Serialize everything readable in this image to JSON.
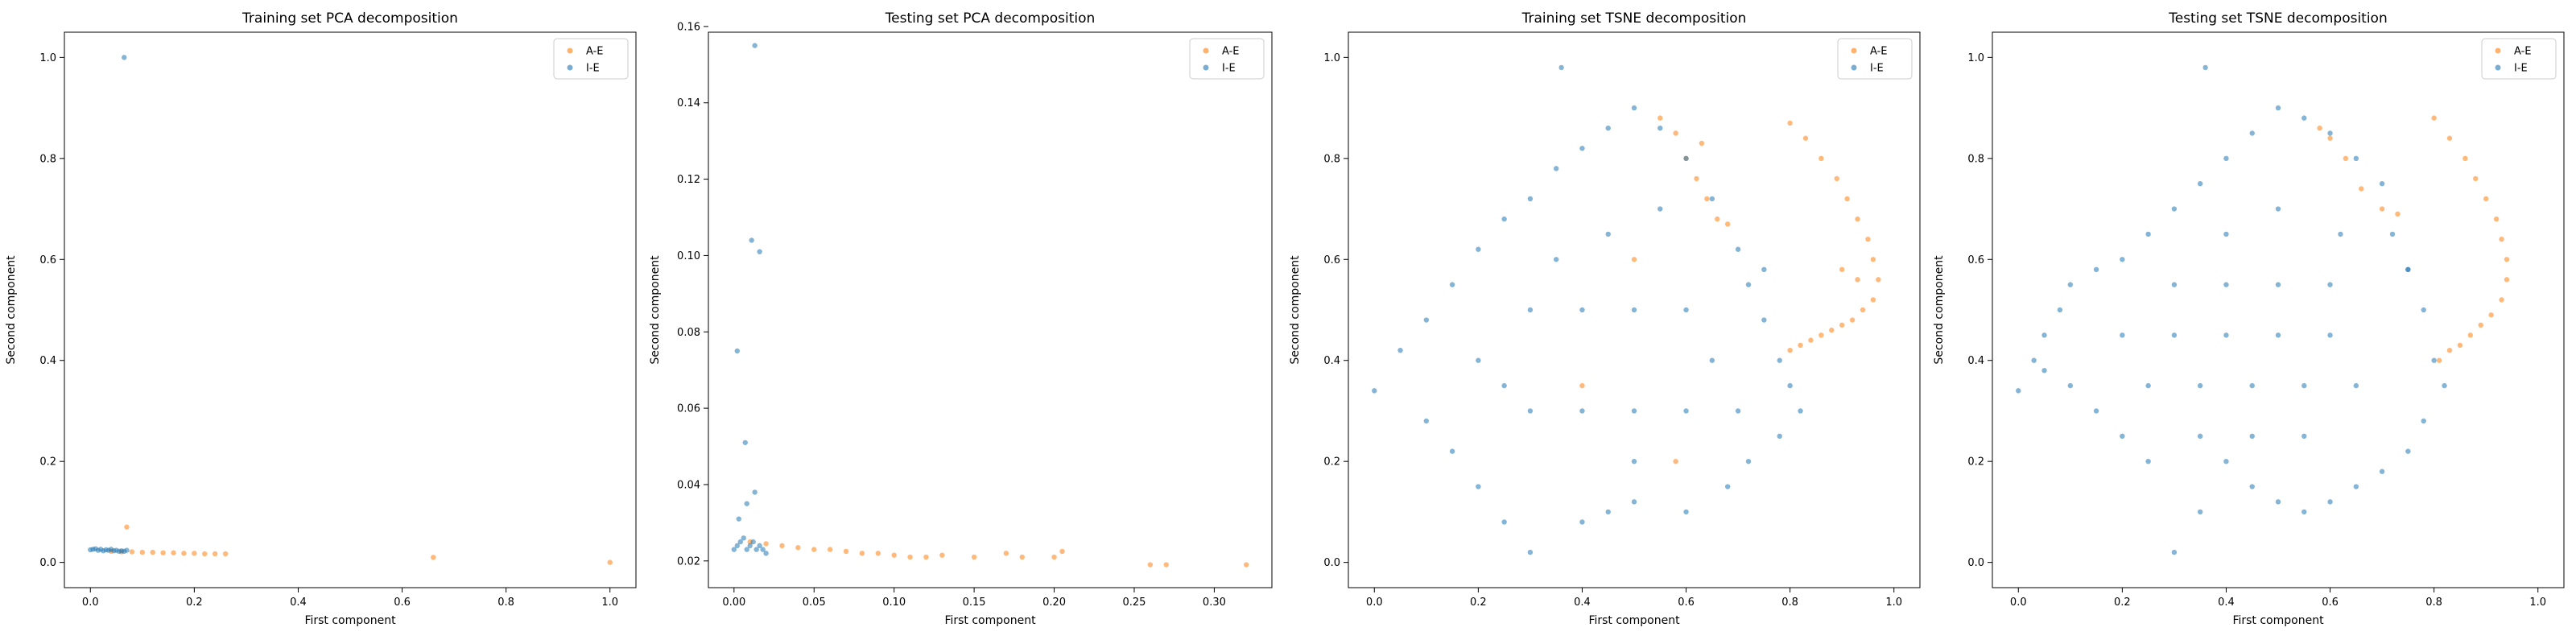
{
  "colors": {
    "A-E": "#ff7f0e",
    "I-E": "#1f77b4"
  },
  "chart_data": [
    {
      "type": "scatter",
      "title": "Training set PCA decomposition",
      "xlabel": "First component",
      "ylabel": "Second component",
      "xlim": [
        -0.05,
        1.05
      ],
      "ylim": [
        -0.05,
        1.05
      ],
      "xticks": [
        "0.0",
        "0.2",
        "0.4",
        "0.6",
        "0.8",
        "1.0"
      ],
      "yticks": [
        "0.0",
        "0.2",
        "0.4",
        "0.6",
        "0.8",
        "1.0"
      ],
      "legend": "top-right",
      "series": [
        {
          "name": "A-E",
          "points": [
            [
              0.04,
              0.022
            ],
            [
              0.06,
              0.021
            ],
            [
              0.08,
              0.021
            ],
            [
              0.1,
              0.02
            ],
            [
              0.12,
              0.02
            ],
            [
              0.14,
              0.019
            ],
            [
              0.16,
              0.019
            ],
            [
              0.18,
              0.018
            ],
            [
              0.2,
              0.018
            ],
            [
              0.22,
              0.017
            ],
            [
              0.24,
              0.017
            ],
            [
              0.26,
              0.017
            ],
            [
              0.07,
              0.07
            ],
            [
              0.66,
              0.01
            ],
            [
              1.0,
              0.0
            ]
          ]
        },
        {
          "name": "I-E",
          "points": [
            [
              0.0,
              0.025
            ],
            [
              0.005,
              0.026
            ],
            [
              0.01,
              0.027
            ],
            [
              0.015,
              0.024
            ],
            [
              0.02,
              0.026
            ],
            [
              0.025,
              0.023
            ],
            [
              0.03,
              0.025
            ],
            [
              0.035,
              0.024
            ],
            [
              0.04,
              0.026
            ],
            [
              0.045,
              0.023
            ],
            [
              0.05,
              0.024
            ],
            [
              0.055,
              0.022
            ],
            [
              0.06,
              0.023
            ],
            [
              0.065,
              0.022
            ],
            [
              0.07,
              0.024
            ],
            [
              0.065,
              1.0
            ]
          ]
        }
      ]
    },
    {
      "type": "scatter",
      "title": "Testing set PCA decomposition",
      "xlabel": "First component",
      "ylabel": "Second component",
      "xlim": [
        -0.016,
        0.336
      ],
      "ylim": [
        0.013,
        0.1585
      ],
      "xticks": [
        "0.00",
        "0.05",
        "0.10",
        "0.15",
        "0.20",
        "0.25",
        "0.30"
      ],
      "yticks": [
        "0.02",
        "0.04",
        "0.06",
        "0.08",
        "0.10",
        "0.12",
        "0.14",
        "0.16"
      ],
      "legend": "top-right",
      "series": [
        {
          "name": "A-E",
          "points": [
            [
              0.01,
              0.025
            ],
            [
              0.02,
              0.0245
            ],
            [
              0.03,
              0.024
            ],
            [
              0.04,
              0.0235
            ],
            [
              0.05,
              0.023
            ],
            [
              0.06,
              0.023
            ],
            [
              0.07,
              0.0225
            ],
            [
              0.08,
              0.022
            ],
            [
              0.09,
              0.022
            ],
            [
              0.1,
              0.0215
            ],
            [
              0.11,
              0.021
            ],
            [
              0.12,
              0.021
            ],
            [
              0.13,
              0.0215
            ],
            [
              0.15,
              0.021
            ],
            [
              0.17,
              0.022
            ],
            [
              0.18,
              0.021
            ],
            [
              0.2,
              0.021
            ],
            [
              0.205,
              0.0225
            ],
            [
              0.26,
              0.019
            ],
            [
              0.27,
              0.019
            ],
            [
              0.32,
              0.019
            ]
          ]
        },
        {
          "name": "I-E",
          "points": [
            [
              0.0,
              0.023
            ],
            [
              0.002,
              0.024
            ],
            [
              0.004,
              0.025
            ],
            [
              0.006,
              0.026
            ],
            [
              0.008,
              0.023
            ],
            [
              0.01,
              0.024
            ],
            [
              0.012,
              0.025
            ],
            [
              0.014,
              0.023
            ],
            [
              0.016,
              0.024
            ],
            [
              0.018,
              0.023
            ],
            [
              0.02,
              0.022
            ],
            [
              0.003,
              0.031
            ],
            [
              0.008,
              0.035
            ],
            [
              0.013,
              0.038
            ],
            [
              0.002,
              0.075
            ],
            [
              0.007,
              0.051
            ],
            [
              0.011,
              0.104
            ],
            [
              0.016,
              0.101
            ],
            [
              0.013,
              0.155
            ]
          ]
        }
      ]
    },
    {
      "type": "scatter",
      "title": "Training set TSNE decomposition",
      "xlabel": "First component",
      "ylabel": "Second component",
      "xlim": [
        -0.05,
        1.05
      ],
      "ylim": [
        -0.05,
        1.05
      ],
      "xticks": [
        "0.0",
        "0.2",
        "0.4",
        "0.6",
        "0.8",
        "1.0"
      ],
      "yticks": [
        "0.0",
        "0.2",
        "0.4",
        "0.6",
        "0.8",
        "1.0"
      ],
      "legend": "top-right",
      "series": [
        {
          "name": "A-E",
          "points": [
            [
              0.8,
              0.87
            ],
            [
              0.83,
              0.84
            ],
            [
              0.86,
              0.8
            ],
            [
              0.89,
              0.76
            ],
            [
              0.91,
              0.72
            ],
            [
              0.93,
              0.68
            ],
            [
              0.95,
              0.64
            ],
            [
              0.96,
              0.6
            ],
            [
              0.97,
              0.56
            ],
            [
              0.96,
              0.52
            ],
            [
              0.94,
              0.5
            ],
            [
              0.92,
              0.48
            ],
            [
              0.9,
              0.47
            ],
            [
              0.88,
              0.46
            ],
            [
              0.86,
              0.45
            ],
            [
              0.84,
              0.44
            ],
            [
              0.82,
              0.43
            ],
            [
              0.8,
              0.42
            ],
            [
              0.9,
              0.58
            ],
            [
              0.93,
              0.56
            ],
            [
              0.55,
              0.88
            ],
            [
              0.58,
              0.85
            ],
            [
              0.6,
              0.8
            ],
            [
              0.62,
              0.76
            ],
            [
              0.64,
              0.72
            ],
            [
              0.66,
              0.68
            ],
            [
              0.68,
              0.67
            ],
            [
              0.63,
              0.83
            ],
            [
              0.5,
              0.6
            ],
            [
              0.4,
              0.35
            ],
            [
              0.58,
              0.2
            ]
          ]
        },
        {
          "name": "I-E",
          "points": [
            [
              0.0,
              0.34
            ],
            [
              0.05,
              0.42
            ],
            [
              0.1,
              0.48
            ],
            [
              0.15,
              0.55
            ],
            [
              0.2,
              0.62
            ],
            [
              0.25,
              0.68
            ],
            [
              0.3,
              0.72
            ],
            [
              0.35,
              0.78
            ],
            [
              0.4,
              0.82
            ],
            [
              0.45,
              0.86
            ],
            [
              0.5,
              0.9
            ],
            [
              0.55,
              0.86
            ],
            [
              0.6,
              0.8
            ],
            [
              0.65,
              0.72
            ],
            [
              0.7,
              0.62
            ],
            [
              0.72,
              0.55
            ],
            [
              0.75,
              0.48
            ],
            [
              0.78,
              0.4
            ],
            [
              0.8,
              0.35
            ],
            [
              0.82,
              0.3
            ],
            [
              0.78,
              0.25
            ],
            [
              0.72,
              0.2
            ],
            [
              0.68,
              0.15
            ],
            [
              0.6,
              0.1
            ],
            [
              0.5,
              0.12
            ],
            [
              0.45,
              0.1
            ],
            [
              0.4,
              0.08
            ],
            [
              0.3,
              0.02
            ],
            [
              0.25,
              0.08
            ],
            [
              0.2,
              0.15
            ],
            [
              0.15,
              0.22
            ],
            [
              0.1,
              0.28
            ],
            [
              0.36,
              0.98
            ],
            [
              0.75,
              0.58
            ],
            [
              0.3,
              0.5
            ],
            [
              0.4,
              0.5
            ],
            [
              0.5,
              0.5
            ],
            [
              0.6,
              0.5
            ],
            [
              0.3,
              0.3
            ],
            [
              0.4,
              0.3
            ],
            [
              0.5,
              0.3
            ],
            [
              0.6,
              0.3
            ],
            [
              0.2,
              0.4
            ],
            [
              0.35,
              0.6
            ],
            [
              0.45,
              0.65
            ],
            [
              0.55,
              0.7
            ],
            [
              0.25,
              0.35
            ],
            [
              0.5,
              0.2
            ],
            [
              0.65,
              0.4
            ],
            [
              0.7,
              0.3
            ]
          ]
        }
      ]
    },
    {
      "type": "scatter",
      "title": "Testing set TSNE decomposition",
      "xlabel": "First component",
      "ylabel": "Second component",
      "xlim": [
        -0.05,
        1.05
      ],
      "ylim": [
        -0.05,
        1.05
      ],
      "xticks": [
        "0.0",
        "0.2",
        "0.4",
        "0.6",
        "0.8",
        "1.0"
      ],
      "yticks": [
        "0.0",
        "0.2",
        "0.4",
        "0.6",
        "0.8",
        "1.0"
      ],
      "legend": "top-right",
      "series": [
        {
          "name": "A-E",
          "points": [
            [
              0.8,
              0.88
            ],
            [
              0.83,
              0.84
            ],
            [
              0.86,
              0.8
            ],
            [
              0.88,
              0.76
            ],
            [
              0.9,
              0.72
            ],
            [
              0.92,
              0.68
            ],
            [
              0.93,
              0.64
            ],
            [
              0.94,
              0.6
            ],
            [
              0.94,
              0.56
            ],
            [
              0.93,
              0.52
            ],
            [
              0.91,
              0.49
            ],
            [
              0.89,
              0.47
            ],
            [
              0.87,
              0.45
            ],
            [
              0.85,
              0.43
            ],
            [
              0.83,
              0.42
            ],
            [
              0.81,
              0.4
            ],
            [
              0.6,
              0.84
            ],
            [
              0.63,
              0.8
            ],
            [
              0.66,
              0.74
            ],
            [
              0.7,
              0.7
            ],
            [
              0.73,
              0.69
            ],
            [
              0.58,
              0.86
            ]
          ]
        },
        {
          "name": "I-E",
          "points": [
            [
              0.0,
              0.34
            ],
            [
              0.03,
              0.4
            ],
            [
              0.05,
              0.45
            ],
            [
              0.08,
              0.5
            ],
            [
              0.1,
              0.55
            ],
            [
              0.15,
              0.58
            ],
            [
              0.2,
              0.6
            ],
            [
              0.25,
              0.65
            ],
            [
              0.3,
              0.7
            ],
            [
              0.35,
              0.75
            ],
            [
              0.4,
              0.8
            ],
            [
              0.45,
              0.85
            ],
            [
              0.5,
              0.9
            ],
            [
              0.55,
              0.88
            ],
            [
              0.6,
              0.85
            ],
            [
              0.65,
              0.8
            ],
            [
              0.7,
              0.75
            ],
            [
              0.72,
              0.65
            ],
            [
              0.75,
              0.58
            ],
            [
              0.78,
              0.5
            ],
            [
              0.8,
              0.4
            ],
            [
              0.82,
              0.35
            ],
            [
              0.78,
              0.28
            ],
            [
              0.75,
              0.22
            ],
            [
              0.7,
              0.18
            ],
            [
              0.65,
              0.15
            ],
            [
              0.6,
              0.12
            ],
            [
              0.55,
              0.1
            ],
            [
              0.5,
              0.12
            ],
            [
              0.45,
              0.15
            ],
            [
              0.4,
              0.2
            ],
            [
              0.35,
              0.1
            ],
            [
              0.3,
              0.02
            ],
            [
              0.25,
              0.2
            ],
            [
              0.2,
              0.25
            ],
            [
              0.15,
              0.3
            ],
            [
              0.1,
              0.35
            ],
            [
              0.05,
              0.38
            ],
            [
              0.36,
              0.98
            ],
            [
              0.75,
              0.58
            ],
            [
              0.2,
              0.45
            ],
            [
              0.3,
              0.45
            ],
            [
              0.4,
              0.45
            ],
            [
              0.5,
              0.45
            ],
            [
              0.6,
              0.45
            ],
            [
              0.25,
              0.35
            ],
            [
              0.35,
              0.35
            ],
            [
              0.45,
              0.35
            ],
            [
              0.55,
              0.35
            ],
            [
              0.65,
              0.35
            ],
            [
              0.3,
              0.55
            ],
            [
              0.4,
              0.55
            ],
            [
              0.5,
              0.55
            ],
            [
              0.6,
              0.55
            ],
            [
              0.35,
              0.25
            ],
            [
              0.45,
              0.25
            ],
            [
              0.55,
              0.25
            ],
            [
              0.62,
              0.65
            ],
            [
              0.5,
              0.7
            ],
            [
              0.4,
              0.65
            ]
          ]
        }
      ]
    }
  ]
}
